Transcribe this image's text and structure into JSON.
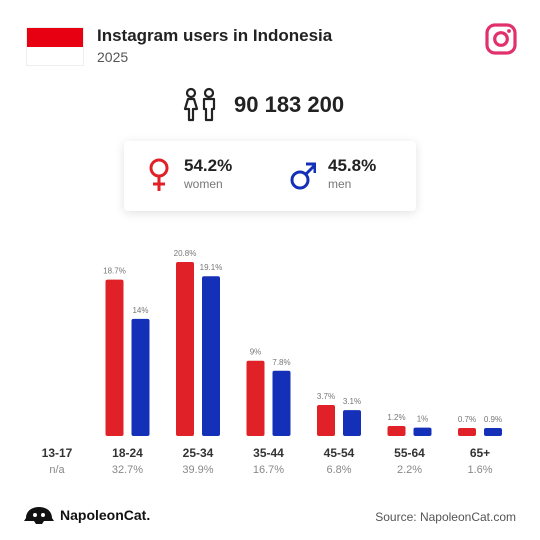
{
  "header": {
    "title": "Instagram users in Indonesia",
    "year": "2025"
  },
  "colors": {
    "women": "#e02127",
    "men": "#1530b8",
    "flag_red": "#e70011",
    "instagram": "#e1306c"
  },
  "icons": {
    "flag": "indonesia-flag-icon",
    "platform": "instagram-icon",
    "users": "users-icon",
    "women": "female-symbol-icon",
    "men": "male-symbol-icon",
    "brand": "napoleoncat-logo-icon"
  },
  "totals": {
    "users": "90 183 200"
  },
  "gender": {
    "women_pct": "54.2%",
    "women_label": "women",
    "men_pct": "45.8%",
    "men_label": "men"
  },
  "chart_data": {
    "type": "bar",
    "categories": [
      "13-17",
      "18-24",
      "25-34",
      "35-44",
      "45-54",
      "55-64",
      "65+"
    ],
    "category_totals": [
      "n/a",
      "32.7%",
      "39.9%",
      "16.7%",
      "6.8%",
      "2.2%",
      "1.6%"
    ],
    "series": [
      {
        "name": "women",
        "values": [
          null,
          18.7,
          20.8,
          9,
          3.7,
          1.2,
          0.7
        ],
        "labels": [
          "",
          "18.7%",
          "20.8%",
          "9%",
          "3.7%",
          "1.2%",
          "0.7%"
        ]
      },
      {
        "name": "men",
        "values": [
          null,
          14,
          19.1,
          7.8,
          3.1,
          1,
          0.9
        ],
        "labels": [
          "",
          "14%",
          "19.1%",
          "7.8%",
          "3.1%",
          "1%",
          "0.9%"
        ]
      }
    ],
    "ylim": [
      0,
      20.8
    ],
    "grid": false
  },
  "footer": {
    "brand": "NapoleonCat.",
    "source": "Source: NapoleonCat.com"
  }
}
